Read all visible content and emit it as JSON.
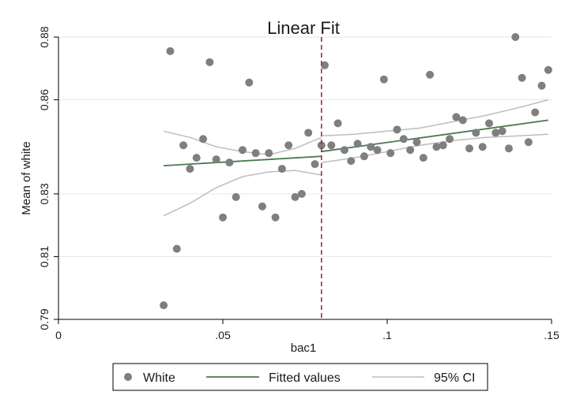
{
  "chart_data": {
    "type": "scatter",
    "title": "Linear Fit",
    "xlabel": "bac1",
    "ylabel": "Mean of white",
    "xlim": [
      0,
      0.15
    ],
    "ylim": [
      0.79,
      0.88
    ],
    "x_ticks": [
      0,
      0.05,
      0.1,
      0.15
    ],
    "x_tick_labels": [
      "0",
      ".05",
      ".1",
      ".15"
    ],
    "y_ticks": [
      0.79,
      0.81,
      0.83,
      0.86,
      0.88
    ],
    "y_tick_labels": [
      "0.79",
      "0.81",
      "0.83",
      "0.86",
      "0.88"
    ],
    "grid": "horizontal",
    "cutoff": 0.08,
    "legend_position": "bottom",
    "legend": [
      "White",
      "Fitted values",
      "95% CI"
    ],
    "colors": {
      "points": "#7f7f7f",
      "fitted": "#4a7a52",
      "ci": "#bdbdbd",
      "cutoff": "#a6173f",
      "grid": "#e6e6e6",
      "axis": "#000000"
    },
    "series": [
      {
        "name": "White",
        "type": "scatter",
        "points": [
          [
            0.032,
            0.7945
          ],
          [
            0.034,
            0.8755
          ],
          [
            0.036,
            0.8125
          ],
          [
            0.038,
            0.8455
          ],
          [
            0.04,
            0.838
          ],
          [
            0.042,
            0.8415
          ],
          [
            0.044,
            0.8475
          ],
          [
            0.046,
            0.872
          ],
          [
            0.048,
            0.841
          ],
          [
            0.05,
            0.8225
          ],
          [
            0.052,
            0.84
          ],
          [
            0.054,
            0.829
          ],
          [
            0.056,
            0.844
          ],
          [
            0.058,
            0.8655
          ],
          [
            0.06,
            0.843
          ],
          [
            0.062,
            0.826
          ],
          [
            0.064,
            0.843
          ],
          [
            0.066,
            0.8225
          ],
          [
            0.068,
            0.838
          ],
          [
            0.07,
            0.8455
          ],
          [
            0.072,
            0.829
          ],
          [
            0.074,
            0.83
          ],
          [
            0.076,
            0.8495
          ],
          [
            0.078,
            0.8395
          ],
          [
            0.08,
            0.8455
          ],
          [
            0.081,
            0.871
          ],
          [
            0.083,
            0.8455
          ],
          [
            0.085,
            0.8525
          ],
          [
            0.087,
            0.844
          ],
          [
            0.089,
            0.8405
          ],
          [
            0.091,
            0.846
          ],
          [
            0.093,
            0.842
          ],
          [
            0.095,
            0.845
          ],
          [
            0.097,
            0.844
          ],
          [
            0.099,
            0.8665
          ],
          [
            0.101,
            0.843
          ],
          [
            0.103,
            0.8505
          ],
          [
            0.105,
            0.8475
          ],
          [
            0.107,
            0.844
          ],
          [
            0.109,
            0.8465
          ],
          [
            0.111,
            0.8415
          ],
          [
            0.113,
            0.868
          ],
          [
            0.115,
            0.845
          ],
          [
            0.117,
            0.8455
          ],
          [
            0.119,
            0.8475
          ],
          [
            0.121,
            0.8545
          ],
          [
            0.123,
            0.8535
          ],
          [
            0.125,
            0.8445
          ],
          [
            0.127,
            0.8495
          ],
          [
            0.129,
            0.845
          ],
          [
            0.131,
            0.8525
          ],
          [
            0.133,
            0.8495
          ],
          [
            0.135,
            0.85
          ],
          [
            0.137,
            0.8445
          ],
          [
            0.139,
            0.88
          ],
          [
            0.141,
            0.867
          ],
          [
            0.143,
            0.8465
          ],
          [
            0.145,
            0.856
          ],
          [
            0.147,
            0.8645
          ],
          [
            0.149,
            0.8695
          ]
        ]
      },
      {
        "name": "Fitted values",
        "type": "line",
        "segments": [
          [
            [
              0.032,
              0.839
            ],
            [
              0.08,
              0.842
            ]
          ],
          [
            [
              0.08,
              0.8435
            ],
            [
              0.149,
              0.8535
            ]
          ]
        ]
      },
      {
        "name": "95% CI",
        "type": "line",
        "segments": [
          [
            [
              0.032,
              0.85
            ],
            [
              0.04,
              0.848
            ],
            [
              0.048,
              0.845
            ],
            [
              0.056,
              0.8435
            ],
            [
              0.064,
              0.8425
            ],
            [
              0.072,
              0.8445
            ],
            [
              0.08,
              0.848
            ]
          ],
          [
            [
              0.032,
              0.823
            ],
            [
              0.04,
              0.827
            ],
            [
              0.048,
              0.832
            ],
            [
              0.056,
              0.8355
            ],
            [
              0.064,
              0.837
            ],
            [
              0.072,
              0.8375
            ],
            [
              0.08,
              0.836
            ]
          ],
          [
            [
              0.08,
              0.8485
            ],
            [
              0.09,
              0.849
            ],
            [
              0.1,
              0.85
            ],
            [
              0.11,
              0.851
            ],
            [
              0.12,
              0.853
            ],
            [
              0.13,
              0.855
            ],
            [
              0.14,
              0.8575
            ],
            [
              0.149,
              0.86
            ]
          ],
          [
            [
              0.08,
              0.84
            ],
            [
              0.09,
              0.8415
            ],
            [
              0.1,
              0.8435
            ],
            [
              0.11,
              0.8455
            ],
            [
              0.12,
              0.847
            ],
            [
              0.13,
              0.848
            ],
            [
              0.14,
              0.8485
            ],
            [
              0.149,
              0.849
            ]
          ]
        ]
      }
    ]
  }
}
